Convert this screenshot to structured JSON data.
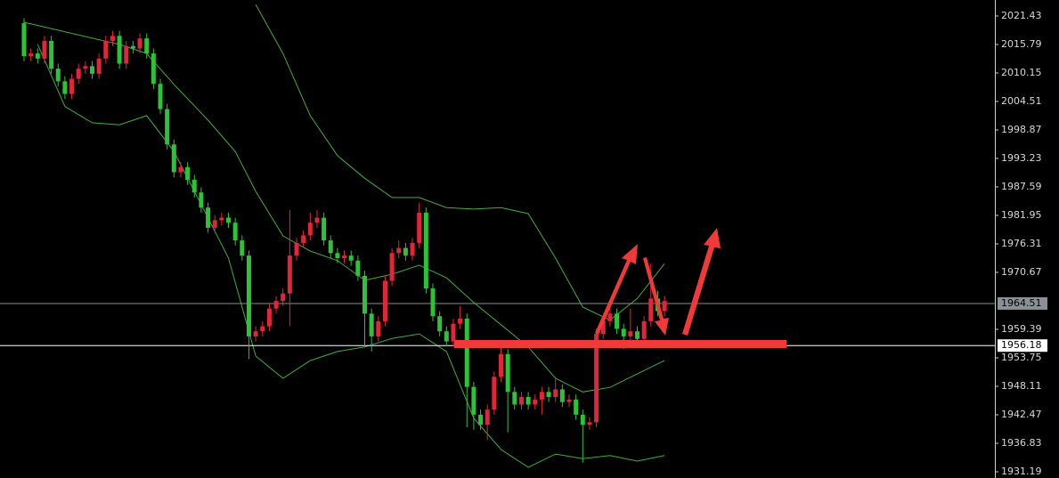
{
  "chart_data": {
    "type": "candlestick",
    "up_color": "#e3253c",
    "down_color": "#2bc436",
    "open": [
      2020.0,
      2013.5,
      2014.0,
      2013.0,
      2016.5,
      2011.0,
      2008.5,
      2006.0,
      2009.0,
      2011.0,
      2011.5,
      2010.0,
      2013.0,
      2016.5,
      2017.5,
      2012.0,
      2015.5,
      2015.0,
      2017.0,
      2014.0,
      2008.0,
      2003.0,
      1996.0,
      1990.5,
      1991.5,
      1989.0,
      1986.5,
      1983.5,
      1979.5,
      1981.0,
      1981.5,
      1980.5,
      1977.0,
      1974.0,
      1958.0,
      1959.0,
      1960.0,
      1963.5,
      1965.0,
      1966.5,
      1974.0,
      1976.5,
      1978.0,
      1980.5,
      1981.5,
      1977.0,
      1974.5,
      1973.5,
      1974.0,
      1973.0,
      1970.0,
      1962.5,
      1958.0,
      1961.0,
      1969.0,
      1974.5,
      1975.5,
      1974.0,
      1976.5,
      1982.5,
      1967.5,
      1962.0,
      1959.0,
      1957.0,
      1960.5,
      1961.5,
      1948.0,
      1942.5,
      1940.5,
      1943.5,
      1950.0,
      1954.5,
      1947.0,
      1944.5,
      1946.0,
      1944.5,
      1945.5,
      1947.0,
      1946.0,
      1947.5,
      1945.0,
      1945.5,
      1942.5,
      1940.5,
      1941.0,
      1958.5,
      1961.0,
      1962.5,
      1959.5,
      1958.0,
      1959.0,
      1957.5,
      1961.0,
      1965.5,
      1963.0
    ],
    "high": [
      2021.0,
      2015.0,
      2015.0,
      2017.5,
      2017.5,
      2012.0,
      2009.5,
      2010.0,
      2012.0,
      2012.5,
      2012.5,
      2014.0,
      2017.5,
      2018.5,
      2018.5,
      2016.5,
      2016.5,
      2018.0,
      2018.0,
      2015.0,
      2009.0,
      2004.0,
      1997.0,
      1992.5,
      1992.5,
      1990.0,
      1987.5,
      1984.5,
      1982.0,
      1982.5,
      1982.5,
      1981.5,
      1978.0,
      1975.0,
      1960.0,
      1961.0,
      1964.5,
      1966.0,
      1967.5,
      1983.0,
      1977.5,
      1979.0,
      1982.5,
      1983.0,
      1982.5,
      1978.0,
      1975.5,
      1975.0,
      1975.0,
      1974.0,
      1971.0,
      1963.5,
      1962.0,
      1970.0,
      1975.5,
      1977.0,
      1976.5,
      1977.5,
      1984.5,
      1983.5,
      1968.5,
      1963.0,
      1960.0,
      1961.5,
      1964.0,
      1962.5,
      1949.0,
      1943.5,
      1944.5,
      1951.0,
      1957.0,
      1955.5,
      1948.0,
      1947.0,
      1947.0,
      1946.5,
      1948.0,
      1948.0,
      1950.0,
      1948.5,
      1946.5,
      1946.5,
      1943.5,
      1942.0,
      1959.5,
      1962.0,
      1963.5,
      1963.5,
      1960.5,
      1963.5,
      1960.0,
      1962.0,
      1972.5,
      1967.0,
      1966.0
    ],
    "low": [
      2012.5,
      2012.5,
      2012.0,
      2012.0,
      2010.0,
      2007.5,
      2005.0,
      2005.0,
      2008.0,
      2010.0,
      2009.0,
      2009.0,
      2012.0,
      2015.5,
      2011.0,
      2011.0,
      2014.0,
      2014.0,
      2013.0,
      2007.0,
      2002.0,
      1995.0,
      1989.5,
      1989.5,
      1988.0,
      1985.5,
      1982.5,
      1978.5,
      1978.5,
      1980.0,
      1979.5,
      1976.0,
      1973.0,
      1953.5,
      1957.0,
      1958.0,
      1959.0,
      1962.5,
      1964.0,
      1960.0,
      1973.0,
      1975.5,
      1977.0,
      1979.5,
      1976.0,
      1973.5,
      1972.5,
      1972.5,
      1972.0,
      1969.0,
      1956.0,
      1955.0,
      1957.0,
      1960.0,
      1968.0,
      1973.5,
      1973.0,
      1973.0,
      1975.5,
      1966.5,
      1961.0,
      1958.0,
      1956.0,
      1956.0,
      1959.5,
      1940.0,
      1939.5,
      1939.5,
      1937.5,
      1942.5,
      1949.0,
      1939.0,
      1943.5,
      1943.5,
      1943.5,
      1943.5,
      1942.5,
      1945.0,
      1945.0,
      1944.0,
      1944.0,
      1941.5,
      1933.0,
      1939.5,
      1940.0,
      1957.5,
      1960.0,
      1958.5,
      1955.5,
      1957.0,
      1956.5,
      1956.5,
      1960.0,
      1962.0,
      1962.0
    ],
    "close": [
      2013.5,
      2014.0,
      2013.0,
      2016.5,
      2011.0,
      2008.5,
      2006.0,
      2009.0,
      2011.0,
      2011.5,
      2010.0,
      2013.0,
      2016.5,
      2017.5,
      2012.0,
      2015.5,
      2015.0,
      2017.0,
      2014.0,
      2008.0,
      2003.0,
      1996.0,
      1990.5,
      1991.5,
      1989.0,
      1986.5,
      1983.5,
      1979.5,
      1981.0,
      1981.5,
      1980.5,
      1977.0,
      1974.0,
      1958.0,
      1959.0,
      1960.0,
      1963.5,
      1965.0,
      1966.5,
      1974.0,
      1976.5,
      1978.0,
      1980.5,
      1981.5,
      1977.0,
      1974.5,
      1973.5,
      1974.0,
      1973.0,
      1970.0,
      1962.5,
      1958.0,
      1961.0,
      1969.0,
      1974.5,
      1975.5,
      1974.0,
      1976.5,
      1982.5,
      1967.5,
      1962.0,
      1959.0,
      1957.0,
      1960.5,
      1961.5,
      1948.0,
      1942.5,
      1940.5,
      1943.5,
      1950.0,
      1954.5,
      1947.0,
      1944.5,
      1946.0,
      1944.5,
      1945.5,
      1947.0,
      1946.0,
      1947.5,
      1945.0,
      1945.5,
      1942.5,
      1940.5,
      1941.0,
      1958.5,
      1961.0,
      1962.5,
      1959.5,
      1958.0,
      1959.0,
      1957.5,
      1961.0,
      1965.5,
      1963.0,
      1965.0
    ],
    "bands": [
      {
        "color": "#3fae3f",
        "x": [
          34,
          38,
          42,
          46,
          50,
          54,
          58,
          62,
          66,
          70,
          74,
          78,
          82,
          86,
          90,
          94
        ],
        "values": [
          2023.7,
          2014.0,
          2001.7,
          1993.8,
          1989.3,
          1985.5,
          1985.5,
          1983.5,
          1983.2,
          1983.5,
          1982.3,
          1973.5,
          1963.8,
          1961.2,
          1965.5,
          1972.4
        ]
      },
      {
        "color": "#3fae3f",
        "x": [
          0,
          14,
          18,
          22,
          27,
          31,
          34,
          38,
          42,
          46,
          50,
          54,
          58,
          62,
          66,
          70,
          74,
          78,
          82,
          86,
          90,
          94
        ],
        "values": [
          2020.2,
          2015.8,
          2014.0,
          2007.9,
          2000.8,
          1994.6,
          1986.7,
          1977.9,
          1974.9,
          1973.0,
          1969.1,
          1970.3,
          1972.1,
          1969.6,
          1964.7,
          1960.3,
          1955.9,
          1949.7,
          1947.0,
          1947.9,
          1950.6,
          1953.2
        ]
      },
      {
        "color": "#3fae3f",
        "x": [
          2,
          6,
          10,
          14,
          18,
          22,
          26,
          30,
          34,
          38,
          42,
          46,
          50,
          54,
          58,
          62,
          66,
          70,
          74,
          78,
          82,
          86,
          90,
          94
        ],
        "values": [
          2015.8,
          2003.5,
          2000.3,
          1999.9,
          2001.7,
          1994.6,
          1984.1,
          1973.5,
          1954.1,
          1949.7,
          1953.2,
          1955.0,
          1955.9,
          1957.6,
          1958.5,
          1955.0,
          1941.8,
          1935.6,
          1932.1,
          1934.7,
          1933.8,
          1934.4,
          1933.3,
          1934.4
        ]
      }
    ],
    "price_lines": [
      {
        "value": 1964.51,
        "color": "#8a9096"
      },
      {
        "value": 1956.18,
        "color": "#ffffff"
      }
    ],
    "ylim": [
      1929.96,
      2024.6
    ],
    "yticks": [
      2021.43,
      2015.79,
      2010.15,
      2004.51,
      1998.87,
      1993.23,
      1987.59,
      1981.95,
      1976.31,
      1970.67,
      1959.39,
      1953.75,
      1948.11,
      1942.47,
      1936.83,
      1931.19
    ]
  }
}
